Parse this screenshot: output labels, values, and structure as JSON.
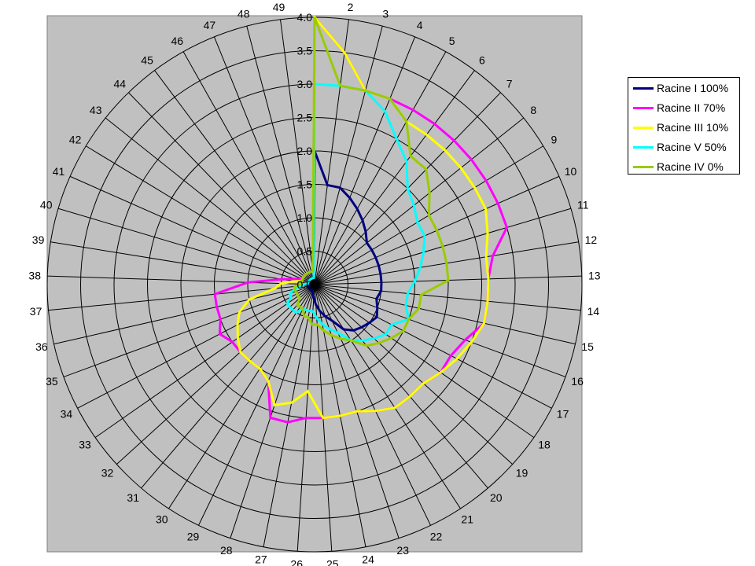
{
  "chart_data": {
    "type": "radar",
    "categories": [
      "1",
      "2",
      "3",
      "4",
      "5",
      "6",
      "7",
      "8",
      "9",
      "10",
      "11",
      "12",
      "13",
      "14",
      "15",
      "16",
      "17",
      "18",
      "19",
      "20",
      "21",
      "22",
      "23",
      "24",
      "25",
      "26",
      "27",
      "28",
      "29",
      "30",
      "31",
      "32",
      "33",
      "34",
      "35",
      "36",
      "37",
      "38",
      "39",
      "40",
      "41",
      "42",
      "43",
      "44",
      "45",
      "46",
      "47",
      "48",
      "49"
    ],
    "rlim": [
      0,
      4.0
    ],
    "r_ticks": [
      "0.0",
      "0.5",
      "1.0",
      "1.5",
      "2.0",
      "2.5",
      "3.0",
      "3.5",
      "4.0"
    ],
    "grid": true,
    "legend_position": "right",
    "background": "#c0c0c0",
    "series": [
      {
        "name": "Racine I 100%",
        "color": "#000080",
        "values": [
          2.0,
          1.5,
          1.5,
          1.4,
          1.3,
          1.2,
          1.1,
          1.0,
          1.0,
          1.0,
          1.0,
          1.0,
          1.0,
          1.0,
          0.95,
          1.0,
          1.05,
          1.0,
          0.95,
          0.9,
          0.8,
          0.6,
          0.5,
          0.4,
          0.3,
          0.2,
          0.15,
          0.1,
          0.1,
          0.1,
          0.1,
          0.1,
          0.1,
          0.1,
          0.1,
          0.1,
          0.1,
          0.1,
          0.1,
          0.1,
          0.1,
          0.1,
          0.1,
          0.1,
          0.1,
          0.1,
          0.1,
          0.1,
          0.1
        ]
      },
      {
        "name": "Racine II 70%",
        "color": "#ff00ff",
        "values": [
          4.0,
          3.5,
          3.0,
          3.0,
          3.0,
          3.0,
          3.0,
          3.0,
          3.0,
          3.0,
          3.0,
          2.7,
          2.6,
          2.6,
          2.6,
          2.4,
          2.3,
          2.3,
          2.2,
          2.2,
          2.2,
          2.1,
          2.0,
          2.0,
          2.0,
          2.0,
          2.1,
          2.1,
          1.6,
          1.5,
          1.5,
          1.5,
          1.5,
          1.6,
          1.5,
          1.5,
          1.5,
          1.0,
          0.5,
          0.3,
          0.2,
          0.2,
          0.2,
          0.2,
          0.2,
          0.2,
          0.2,
          0.2,
          0.2
        ]
      },
      {
        "name": "Racine III 10%",
        "color": "#ffff00",
        "values": [
          4.0,
          3.5,
          3.0,
          3.0,
          2.8,
          2.8,
          2.8,
          2.8,
          2.8,
          2.8,
          2.7,
          2.6,
          2.6,
          2.6,
          2.6,
          2.5,
          2.4,
          2.3,
          2.2,
          2.2,
          2.2,
          2.1,
          2.0,
          2.0,
          2.0,
          1.6,
          1.8,
          1.9,
          1.6,
          1.5,
          1.5,
          1.5,
          1.4,
          1.3,
          1.2,
          1.0,
          0.6,
          0.5,
          0.3,
          0.2,
          0.2,
          0.2,
          0.2,
          0.2,
          0.2,
          0.2,
          0.2,
          0.2,
          0.2
        ]
      },
      {
        "name": "Racine V 50%",
        "color": "#00ffff",
        "values": [
          3.0,
          3.0,
          3.0,
          2.8,
          2.5,
          2.3,
          2.0,
          1.9,
          1.8,
          1.8,
          1.7,
          1.6,
          1.5,
          1.4,
          1.4,
          1.5,
          1.3,
          1.3,
          1.2,
          1.1,
          1.0,
          0.8,
          0.7,
          0.6,
          0.5,
          0.4,
          0.4,
          0.4,
          0.4,
          0.5,
          0.5,
          0.5,
          0.5,
          0.4,
          0.4,
          0.3,
          0.2,
          0.15,
          0.1,
          0.1,
          0.1,
          0.1,
          0.1,
          0.1,
          0.1,
          0.1,
          0.1,
          0.1,
          0.1
        ]
      },
      {
        "name": "Racine IV 0%",
        "color": "#99cc00",
        "values": [
          4.0,
          3.0,
          3.0,
          3.0,
          2.8,
          2.4,
          2.4,
          2.2,
          2.0,
          2.0,
          2.0,
          2.0,
          2.0,
          1.6,
          1.6,
          1.5,
          1.5,
          1.4,
          1.3,
          1.2,
          1.0,
          0.9,
          0.8,
          0.7,
          0.6,
          0.6,
          0.5,
          0.5,
          0.4,
          0.4,
          0.4,
          0.3,
          0.3,
          0.3,
          0.3,
          0.3,
          0.3,
          0.2,
          0.2,
          0.2,
          0.2,
          0.2,
          0.2,
          0.2,
          0.2,
          0.2,
          0.2,
          0.2,
          0.2
        ]
      }
    ]
  }
}
